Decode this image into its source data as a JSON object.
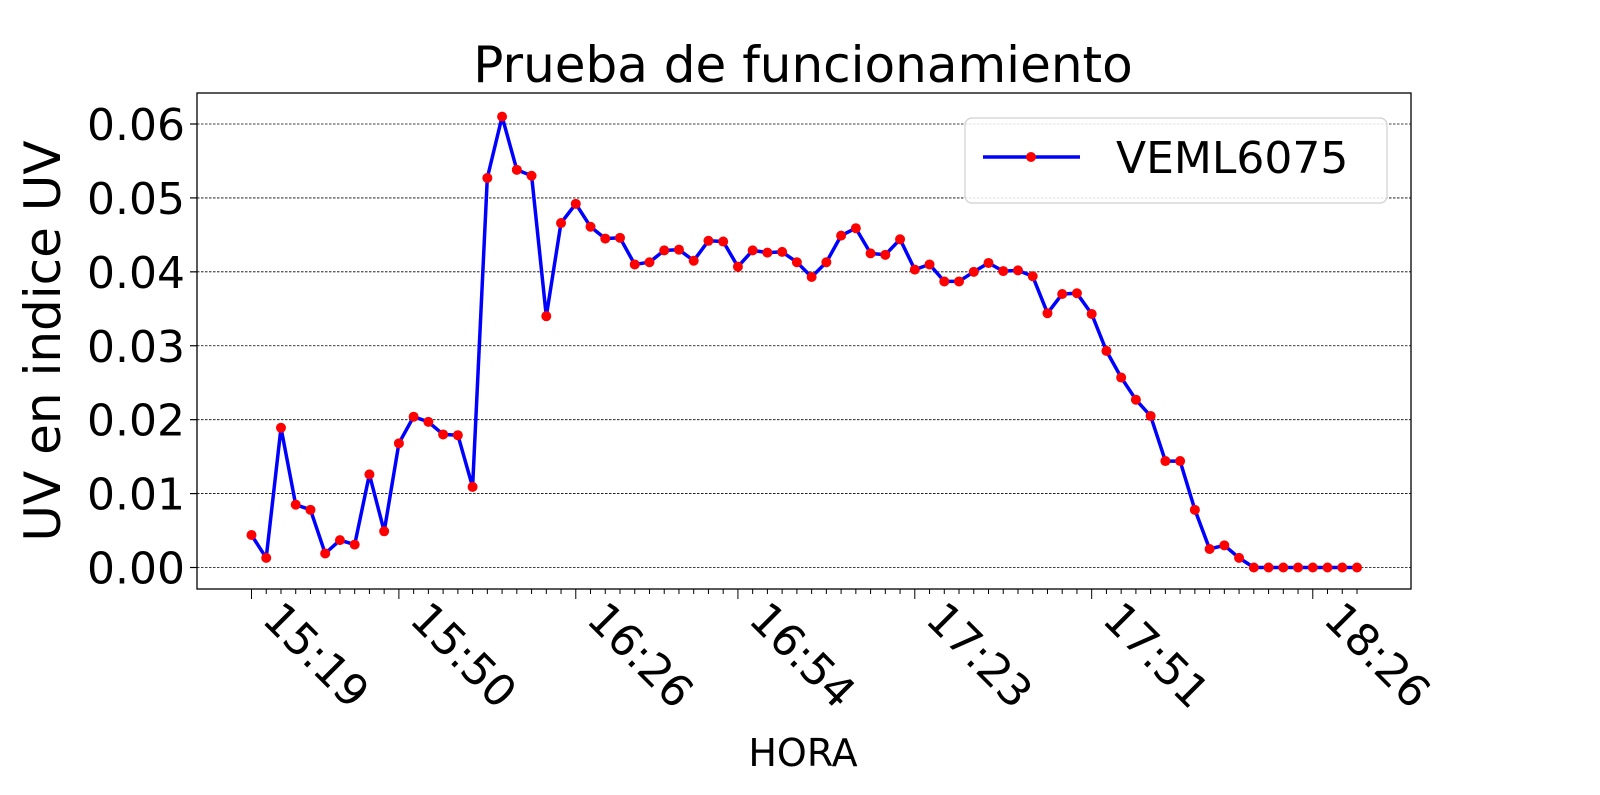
{
  "chart_data": {
    "type": "line",
    "title": "Prueba de funcionamiento",
    "xlabel": "HORA",
    "ylabel": "UV en indice UV",
    "ylim": [
      -0.003,
      0.064
    ],
    "yticks": [
      "0.00",
      "0.01",
      "0.02",
      "0.03",
      "0.04",
      "0.05",
      "0.06"
    ],
    "ytick_values": [
      0,
      0.01,
      0.02,
      0.03,
      0.04,
      0.05,
      0.06
    ],
    "grid": "horizontal dashed",
    "legend_position": "top-right",
    "x_tick_labels": [
      {
        "label": "15:19",
        "index": 0
      },
      {
        "label": "15:50",
        "index": 10
      },
      {
        "label": "16:26",
        "index": 22
      },
      {
        "label": "16:54",
        "index": 33
      },
      {
        "label": "17:23",
        "index": 45
      },
      {
        "label": "17:51",
        "index": 57
      },
      {
        "label": "18:26",
        "index": 72
      }
    ],
    "series": [
      {
        "name": "VEML6075",
        "line_color": "#0000ff",
        "marker_color": "#ff0000",
        "values": [
          0.0044,
          0.0013,
          0.0189,
          0.0085,
          0.0078,
          0.0019,
          0.0037,
          0.0031,
          0.0126,
          0.0049,
          0.0168,
          0.0204,
          0.0197,
          0.018,
          0.0179,
          0.0109,
          0.0527,
          0.061,
          0.0538,
          0.053,
          0.034,
          0.0466,
          0.0492,
          0.0461,
          0.0445,
          0.0446,
          0.041,
          0.0413,
          0.0429,
          0.043,
          0.0415,
          0.0442,
          0.0441,
          0.0407,
          0.0429,
          0.0426,
          0.0427,
          0.0413,
          0.0393,
          0.0413,
          0.0449,
          0.0459,
          0.0425,
          0.0423,
          0.0444,
          0.0403,
          0.041,
          0.0387,
          0.0387,
          0.04,
          0.0412,
          0.0401,
          0.0402,
          0.0394,
          0.0344,
          0.037,
          0.0371,
          0.0343,
          0.0293,
          0.0257,
          0.0227,
          0.0205,
          0.0144,
          0.0144,
          0.0078,
          0.0025,
          0.003,
          0.0013,
          0.0,
          0.0,
          0.0,
          0.0,
          0.0,
          0.0,
          0.0,
          0.0
        ]
      }
    ]
  }
}
